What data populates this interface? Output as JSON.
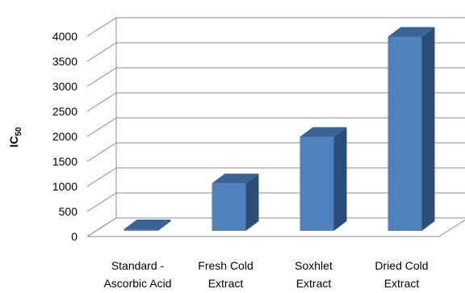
{
  "chart_data": {
    "type": "bar",
    "style": "3d-column",
    "categories": [
      [
        "Standard -",
        "Ascorbic Acid"
      ],
      [
        "Fresh Cold",
        "Extract"
      ],
      [
        "Soxhlet",
        "Extract"
      ],
      [
        "Dried Cold",
        "Extract"
      ]
    ],
    "values": [
      30,
      950,
      1880,
      3880
    ],
    "ylabel": "IC",
    "ylabel_subscript": "50",
    "ylim": [
      0,
      4000
    ],
    "yticks": [
      "0",
      "500",
      "1000",
      "1500",
      "2000",
      "2500",
      "3000",
      "3500",
      "4000"
    ],
    "grid": true,
    "legend": "none",
    "colors": {
      "bar_front": "#4f81bd",
      "bar_side": "#2c4d75",
      "bar_top": "#3a6496",
      "grid": "#8c8c8c"
    }
  }
}
